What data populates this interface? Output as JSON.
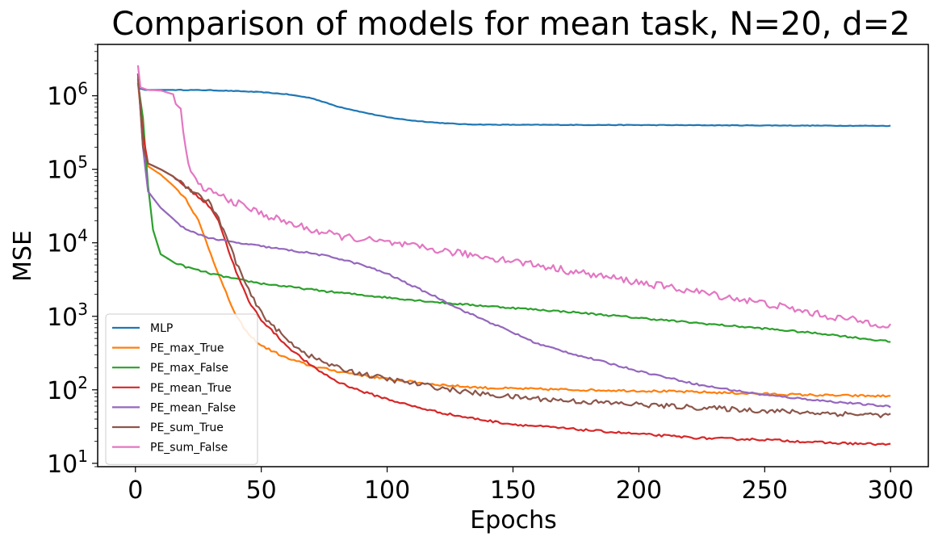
{
  "chart_data": {
    "type": "line",
    "title": "Comparison of models for mean task, N=20, d=2",
    "xlabel": "Epochs",
    "ylabel": "MSE",
    "xlim": [
      -15,
      315
    ],
    "ylim": [
      9,
      5000000
    ],
    "yscale": "log",
    "xticks": [
      {
        "value": 0,
        "label": "0"
      },
      {
        "value": 50,
        "label": "50"
      },
      {
        "value": 100,
        "label": "100"
      },
      {
        "value": 150,
        "label": "150"
      },
      {
        "value": 200,
        "label": "200"
      },
      {
        "value": 250,
        "label": "250"
      },
      {
        "value": 300,
        "label": "300"
      }
    ],
    "yticks": [
      {
        "value": 10,
        "base": "10",
        "exp": "1"
      },
      {
        "value": 100,
        "base": "10",
        "exp": "2"
      },
      {
        "value": 1000,
        "base": "10",
        "exp": "3"
      },
      {
        "value": 10000,
        "base": "10",
        "exp": "4"
      },
      {
        "value": 100000,
        "base": "10",
        "exp": "5"
      },
      {
        "value": 1000000,
        "base": "10",
        "exp": "6"
      }
    ],
    "grid": false,
    "legend": "lower-left",
    "series": [
      {
        "name": "MLP",
        "color": "#1f77b4",
        "noise": 0.004,
        "points": [
          [
            1,
            1800000
          ],
          [
            2,
            1250000
          ],
          [
            4,
            1200000
          ],
          [
            20,
            1200000
          ],
          [
            30,
            1190000
          ],
          [
            40,
            1160000
          ],
          [
            50,
            1120000
          ],
          [
            60,
            1050000
          ],
          [
            70,
            930000
          ],
          [
            80,
            720000
          ],
          [
            90,
            600000
          ],
          [
            100,
            510000
          ],
          [
            110,
            460000
          ],
          [
            120,
            430000
          ],
          [
            130,
            410000
          ],
          [
            140,
            405000
          ],
          [
            150,
            403000
          ],
          [
            200,
            400000
          ],
          [
            250,
            395000
          ],
          [
            300,
            390000
          ]
        ]
      },
      {
        "name": "PE_max_True",
        "color": "#ff7f0e",
        "noise": 0.015,
        "points": [
          [
            1,
            1500000
          ],
          [
            3,
            300000
          ],
          [
            5,
            110000
          ],
          [
            10,
            85000
          ],
          [
            15,
            60000
          ],
          [
            20,
            40000
          ],
          [
            25,
            20000
          ],
          [
            30,
            7000
          ],
          [
            35,
            2500
          ],
          [
            40,
            1000
          ],
          [
            45,
            560
          ],
          [
            50,
            400
          ],
          [
            60,
            270
          ],
          [
            70,
            210
          ],
          [
            80,
            180
          ],
          [
            90,
            158
          ],
          [
            100,
            140
          ],
          [
            110,
            128
          ],
          [
            120,
            118
          ],
          [
            130,
            111
          ],
          [
            140,
            106
          ],
          [
            150,
            104
          ],
          [
            175,
            100
          ],
          [
            200,
            97
          ],
          [
            225,
            93
          ],
          [
            250,
            88
          ],
          [
            275,
            84
          ],
          [
            300,
            82
          ]
        ]
      },
      {
        "name": "PE_max_False",
        "color": "#2ca02c",
        "noise": 0.012,
        "points": [
          [
            1,
            1500000
          ],
          [
            3,
            500000
          ],
          [
            5,
            60000
          ],
          [
            7,
            15000
          ],
          [
            10,
            7000
          ],
          [
            15,
            5500
          ],
          [
            20,
            4700
          ],
          [
            30,
            3800
          ],
          [
            40,
            3200
          ],
          [
            50,
            2800
          ],
          [
            75,
            2200
          ],
          [
            100,
            1800
          ],
          [
            125,
            1500
          ],
          [
            150,
            1300
          ],
          [
            175,
            1130
          ],
          [
            200,
            950
          ],
          [
            225,
            800
          ],
          [
            250,
            680
          ],
          [
            275,
            570
          ],
          [
            300,
            450
          ]
        ]
      },
      {
        "name": "PE_mean_True",
        "color": "#d62728",
        "noise": 0.015,
        "points": [
          [
            1,
            1700000
          ],
          [
            3,
            300000
          ],
          [
            5,
            120000
          ],
          [
            10,
            100000
          ],
          [
            15,
            80000
          ],
          [
            20,
            58000
          ],
          [
            25,
            42000
          ],
          [
            30,
            30000
          ],
          [
            33,
            20000
          ],
          [
            36,
            10000
          ],
          [
            40,
            4000
          ],
          [
            45,
            1600
          ],
          [
            50,
            900
          ],
          [
            60,
            400
          ],
          [
            70,
            210
          ],
          [
            80,
            130
          ],
          [
            90,
            95
          ],
          [
            100,
            75
          ],
          [
            110,
            60
          ],
          [
            120,
            50
          ],
          [
            130,
            43
          ],
          [
            140,
            38
          ],
          [
            150,
            34
          ],
          [
            175,
            29
          ],
          [
            200,
            25
          ],
          [
            225,
            22
          ],
          [
            250,
            21
          ],
          [
            275,
            19
          ],
          [
            300,
            18
          ]
        ]
      },
      {
        "name": "PE_mean_False",
        "color": "#9467bd",
        "noise": 0.012,
        "points": [
          [
            1,
            2000000
          ],
          [
            3,
            200000
          ],
          [
            5,
            50000
          ],
          [
            10,
            30000
          ],
          [
            20,
            15000
          ],
          [
            30,
            11500
          ],
          [
            40,
            10000
          ],
          [
            50,
            9000
          ],
          [
            60,
            8000
          ],
          [
            70,
            7200
          ],
          [
            80,
            6200
          ],
          [
            90,
            5000
          ],
          [
            100,
            3800
          ],
          [
            110,
            2600
          ],
          [
            120,
            1800
          ],
          [
            130,
            1200
          ],
          [
            140,
            850
          ],
          [
            150,
            600
          ],
          [
            160,
            420
          ],
          [
            175,
            300
          ],
          [
            200,
            180
          ],
          [
            225,
            115
          ],
          [
            250,
            85
          ],
          [
            275,
            70
          ],
          [
            300,
            59
          ]
        ]
      },
      {
        "name": "PE_sum_True",
        "color": "#8c564b",
        "noise": 0.035,
        "points": [
          [
            1,
            2000000
          ],
          [
            3,
            200000
          ],
          [
            5,
            120000
          ],
          [
            10,
            100000
          ],
          [
            15,
            80000
          ],
          [
            20,
            60000
          ],
          [
            25,
            45000
          ],
          [
            30,
            34000
          ],
          [
            35,
            15000
          ],
          [
            40,
            5500
          ],
          [
            45,
            2200
          ],
          [
            50,
            1100
          ],
          [
            60,
            480
          ],
          [
            70,
            280
          ],
          [
            80,
            200
          ],
          [
            90,
            165
          ],
          [
            100,
            140
          ],
          [
            110,
            123
          ],
          [
            120,
            108
          ],
          [
            130,
            95
          ],
          [
            140,
            86
          ],
          [
            150,
            80
          ],
          [
            175,
            70
          ],
          [
            200,
            63
          ],
          [
            225,
            57
          ],
          [
            250,
            52
          ],
          [
            275,
            48
          ],
          [
            300,
            45
          ]
        ]
      },
      {
        "name": "PE_sum_False",
        "color": "#e377c2",
        "noise": 0.05,
        "points": [
          [
            1,
            2600000
          ],
          [
            2,
            1300000
          ],
          [
            5,
            1200000
          ],
          [
            10,
            1180000
          ],
          [
            15,
            1050000
          ],
          [
            18,
            600000
          ],
          [
            20,
            180000
          ],
          [
            22,
            90000
          ],
          [
            25,
            60000
          ],
          [
            30,
            50000
          ],
          [
            40,
            35000
          ],
          [
            50,
            25000
          ],
          [
            60,
            19000
          ],
          [
            70,
            15000
          ],
          [
            80,
            12500
          ],
          [
            100,
            10000
          ],
          [
            125,
            7500
          ],
          [
            150,
            5700
          ],
          [
            175,
            4000
          ],
          [
            200,
            2900
          ],
          [
            225,
            2100
          ],
          [
            250,
            1500
          ],
          [
            275,
            1000
          ],
          [
            300,
            750
          ]
        ]
      }
    ]
  }
}
